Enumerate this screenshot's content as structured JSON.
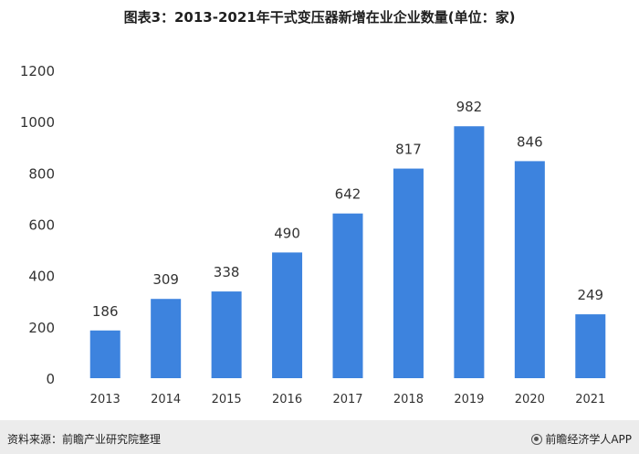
{
  "chart_data": {
    "type": "bar",
    "title": "图表3：2013-2021年干式变压器新增在业企业数量(单位：家)",
    "categories": [
      "2013",
      "2014",
      "2015",
      "2016",
      "2017",
      "2018",
      "2019",
      "2020",
      "2021"
    ],
    "values": [
      186,
      309,
      338,
      490,
      642,
      817,
      982,
      846,
      249
    ],
    "ylim": [
      0,
      1200
    ],
    "yticks": [
      0,
      200,
      400,
      600,
      800,
      1000,
      1200
    ],
    "grid": false,
    "legend": "none",
    "bar_color": "#3d83de"
  },
  "footer": {
    "source": "资料来源：前瞻产业研究院整理",
    "brand": "前瞻经济学人APP"
  }
}
